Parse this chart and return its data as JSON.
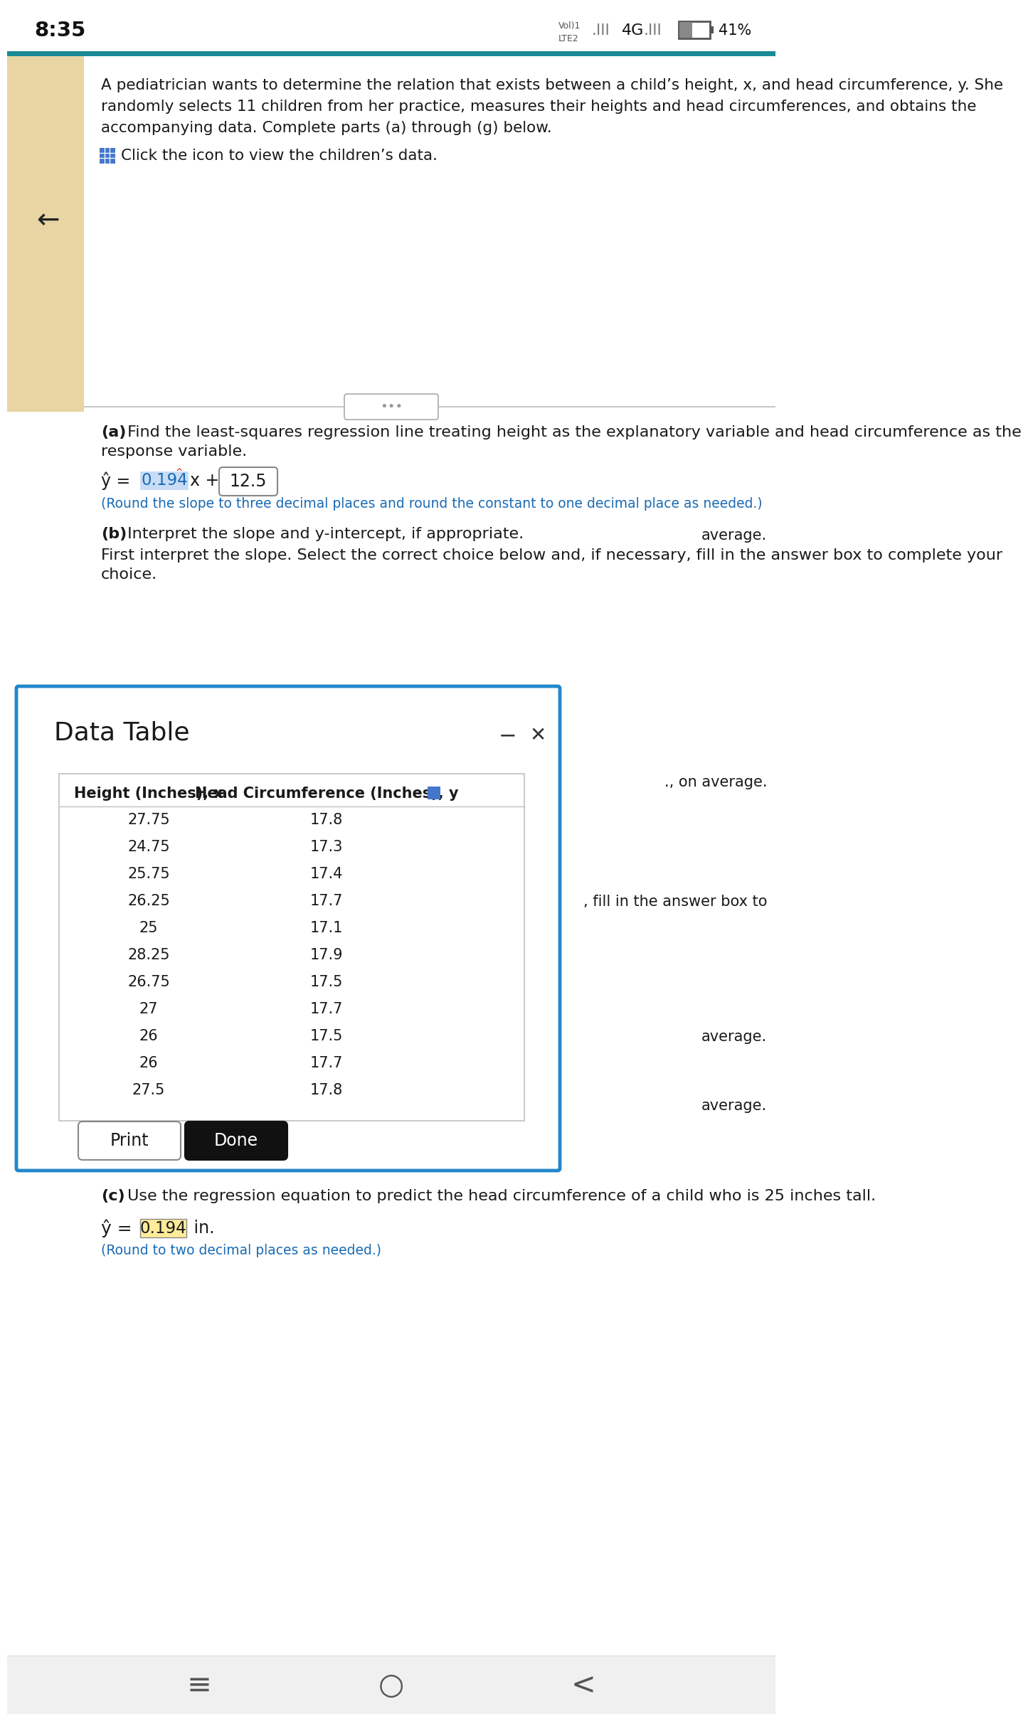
{
  "status_bar_time": "8:35",
  "bg_color": "#ffffff",
  "top_bar_color": "#1a8a96",
  "left_bar_color": "#e8d5a3",
  "main_text_color": "#1a1a1a",
  "blue_text_color": "#1a6bb5",
  "highlight_blue": "#c8dcf5",
  "highlight_yellow": "#ffeb99",
  "dialog_border_color": "#2288cc",
  "dialog_bg": "#ffffff",
  "problem_text_line1": "A pediatrician wants to determine the relation that exists between a child’s height, x, and head circumference, y. She",
  "problem_text_line2": "randomly selects 11 children from her practice, measures their heights and head circumferences, and obtains the",
  "problem_text_line3": "accompanying data. Complete parts (a) through (g) below.",
  "click_text": "Click the icon to view the children’s data.",
  "part_a_label": "(a)",
  "part_a_text": " Find the least-squares regression line treating height as the explanatory variable and head circumference as the",
  "part_a_text2": "response variable.",
  "equation_note": "(Round the slope to three decimal places and round the constant to one decimal place as needed.)",
  "part_b_label": "(b)",
  "part_b_text": " Interpret the slope and y-intercept, if appropriate.",
  "part_b_text2": "First interpret the slope. Select the correct choice below and, if necessary, fill in the answer box to complete your",
  "part_b_text3": "choice.",
  "dialog_title": "Data Table",
  "table_header_x": "Height (Inches), x",
  "table_header_y": "Head Circumference (Inches), y",
  "table_data_x": [
    "27.75",
    "24.75",
    "25.75",
    "26.25",
    "25",
    "28.25",
    "26.75",
    "27",
    "26",
    "26",
    "27.5"
  ],
  "table_data_y": [
    "17.8",
    "17.3",
    "17.4",
    "17.7",
    "17.1",
    "17.9",
    "17.5",
    "17.7",
    "17.5",
    "17.7",
    "17.8"
  ],
  "right_text_1": "average.",
  "right_text_2": "., on average.",
  "right_text_3": ", fill in the answer box to",
  "right_text_4": "average.",
  "right_text_5": "average.",
  "print_button": "Print",
  "done_button": "Done",
  "part_c_label": "(c)",
  "part_c_text": " Use the regression equation to predict the head circumference of a child who is 25 inches tall.",
  "part_c_note": "(Round to two decimal places as needed.)",
  "separator_dots": "•••",
  "toolbar_bg": "#f0f0f0",
  "bottom_icons": [
    "≡",
    "○",
    "<"
  ],
  "icon_color": "#4477cc",
  "accent_red": "#cc2200"
}
